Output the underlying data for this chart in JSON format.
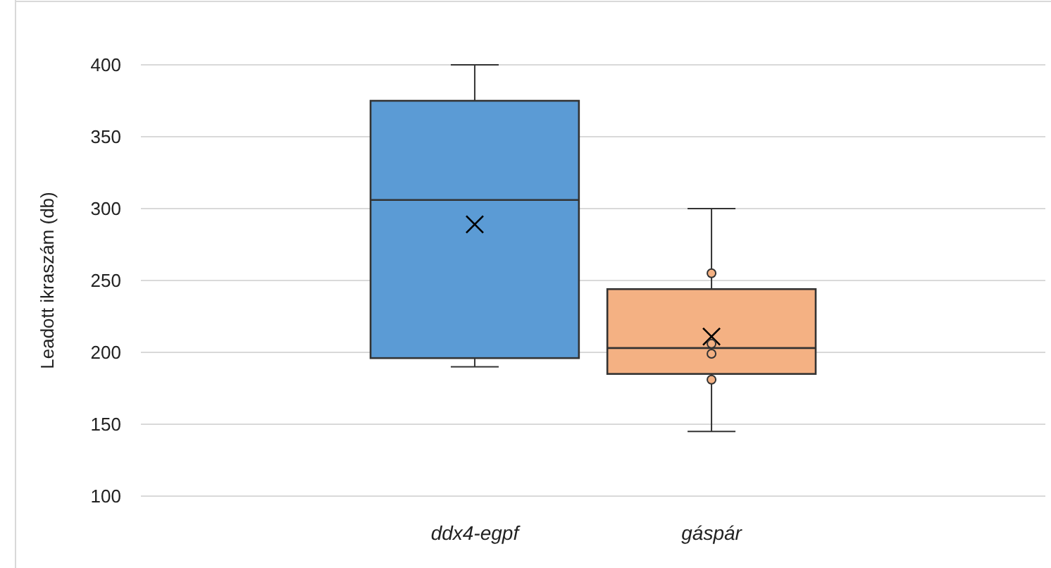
{
  "chart_data": {
    "type": "box",
    "ylabel": "Leadott ikraszám (db)",
    "categories": [
      "ddx4-egpf",
      "gáspár"
    ],
    "colors": [
      "#5b9bd5",
      "#f4b183"
    ],
    "boxes": [
      {
        "low": 190,
        "q1": 196,
        "median": 306,
        "q3": 375,
        "high": 400,
        "mean": 289
      },
      {
        "low": 145,
        "q1": 185,
        "median": 203,
        "q3": 244,
        "high": 300,
        "mean": 211,
        "outliers": [
          255,
          206,
          199,
          181
        ]
      }
    ],
    "ylim": [
      100,
      400
    ],
    "yticks": [
      100,
      150,
      200,
      250,
      300,
      350,
      400
    ],
    "grid": "y",
    "marker": "cross"
  }
}
